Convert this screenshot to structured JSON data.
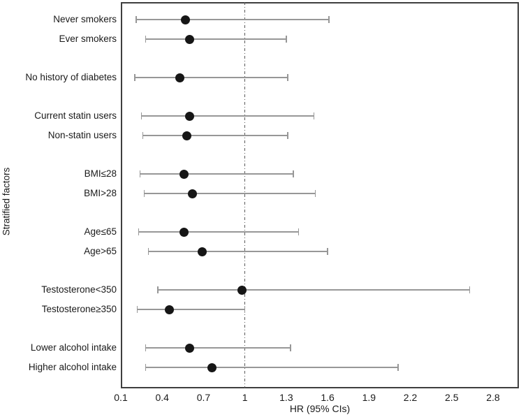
{
  "chart_data": {
    "type": "scatter",
    "variant": "forest-plot",
    "title": "",
    "xlabel": "HR (95% CIs)",
    "ylabel": "Stratified factors",
    "x_tick_labels": [
      "0.1",
      "0.4",
      "0.7",
      "1",
      "1.3",
      "1.6",
      "1.9",
      "2.2",
      "2.5",
      "2.8"
    ],
    "x_tick_values": [
      0.1,
      0.4,
      0.7,
      1.0,
      1.3,
      1.6,
      1.9,
      2.2,
      2.5,
      2.8
    ],
    "xlim": [
      0.1,
      2.95
    ],
    "reference_line_x": 1,
    "grid": false,
    "legend": false,
    "groups": [
      {
        "rows": [
          {
            "label": "Never smokers",
            "hr": 0.57,
            "ci_low": 0.21,
            "ci_high": 1.61
          },
          {
            "label": "Ever smokers",
            "hr": 0.6,
            "ci_low": 0.28,
            "ci_high": 1.3
          }
        ]
      },
      {
        "rows": [
          {
            "label": "No history of diabetes",
            "hr": 0.53,
            "ci_low": 0.2,
            "ci_high": 1.31
          }
        ]
      },
      {
        "rows": [
          {
            "label": "Current statin users",
            "hr": 0.6,
            "ci_low": 0.25,
            "ci_high": 1.5
          },
          {
            "label": "Non-statin users",
            "hr": 0.58,
            "ci_low": 0.26,
            "ci_high": 1.31
          }
        ]
      },
      {
        "rows": [
          {
            "label": "BMI≤28",
            "hr": 0.56,
            "ci_low": 0.24,
            "ci_high": 1.35
          },
          {
            "label": "BMI>28",
            "hr": 0.62,
            "ci_low": 0.27,
            "ci_high": 1.51
          }
        ]
      },
      {
        "rows": [
          {
            "label": "Age≤65",
            "hr": 0.56,
            "ci_low": 0.23,
            "ci_high": 1.39
          },
          {
            "label": "Age>65",
            "hr": 0.69,
            "ci_low": 0.3,
            "ci_high": 1.6
          }
        ]
      },
      {
        "rows": [
          {
            "label": "Testosterone<350",
            "hr": 0.98,
            "ci_low": 0.37,
            "ci_high": 2.63
          },
          {
            "label": "Testosterone≥350",
            "hr": 0.45,
            "ci_low": 0.22,
            "ci_high": 1.0
          }
        ]
      },
      {
        "rows": [
          {
            "label": "Lower alcohol intake",
            "hr": 0.6,
            "ci_low": 0.28,
            "ci_high": 1.33
          },
          {
            "label": "Higher alcohol intake",
            "hr": 0.76,
            "ci_low": 0.28,
            "ci_high": 2.11
          }
        ]
      }
    ],
    "colors": {
      "marker": "#161616",
      "ci_line": "#979797",
      "reference_line": "#5a5a5a",
      "box_border": "#3f3f3f",
      "text": "#1a1a1a"
    }
  }
}
